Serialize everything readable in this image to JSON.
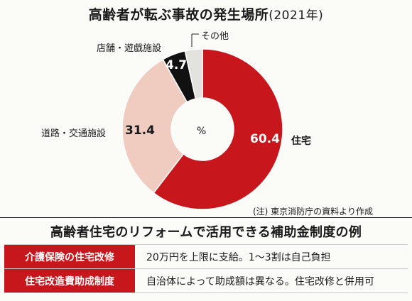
{
  "chart_data": {
    "type": "pie",
    "title": "高齢者が転ぶ事故の発生場所",
    "subtitle": "(2021年)",
    "center_label": "%",
    "slices": [
      {
        "label": "住宅",
        "value": 60.4,
        "display": "60.4",
        "color": "#c8161d"
      },
      {
        "label": "道路・交通施設",
        "value": 31.4,
        "display": "31.4",
        "color": "#f0cbbf"
      },
      {
        "label": "店舗・遊戯施設",
        "value": 4.7,
        "display": "4.7",
        "color": "#111111"
      },
      {
        "label": "その他",
        "value": 3.5,
        "color": "#e3e3de"
      }
    ],
    "note": "(注) 東京消防庁の資料より作成"
  },
  "table": {
    "title": "高齢者住宅のリフォームで活用できる補助金制度の例",
    "rows": [
      {
        "name": "介護保険の住宅改修",
        "desc": "20万円を上限に支給。1～3割は自己負担"
      },
      {
        "name": "住宅改造費助成制度",
        "desc": "自治体によって助成額は異なる。住宅改修と併用可"
      }
    ]
  }
}
